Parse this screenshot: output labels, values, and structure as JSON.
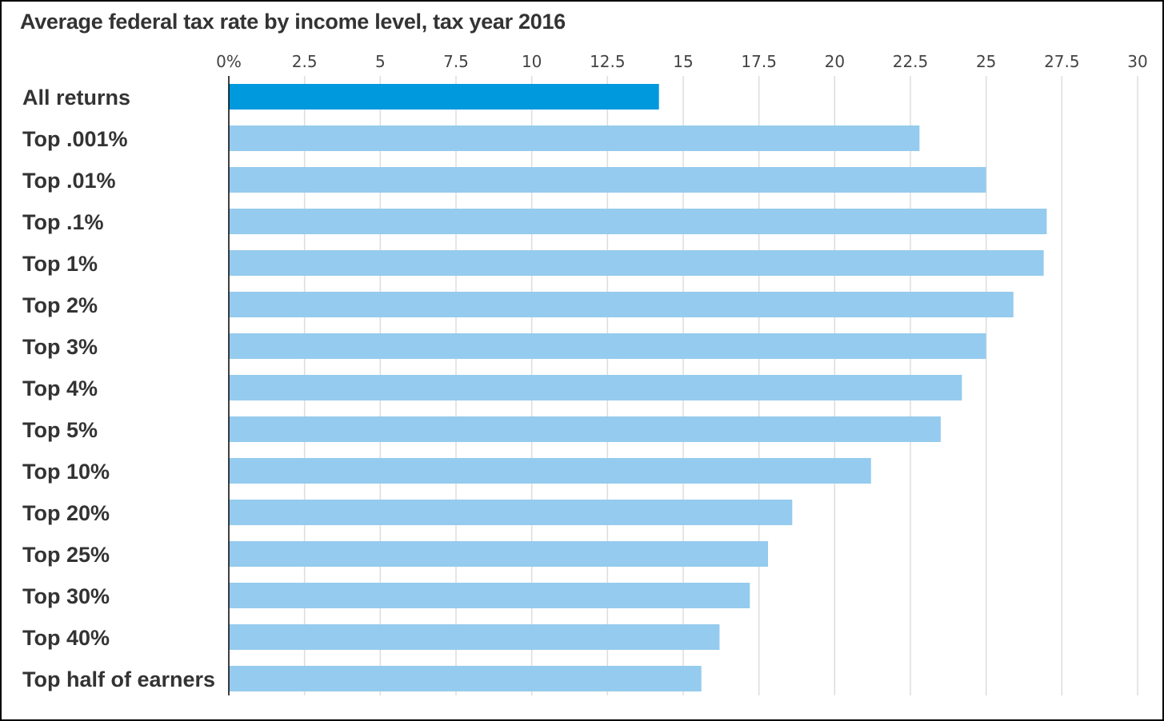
{
  "chart_data": {
    "type": "bar",
    "orientation": "horizontal",
    "title": "Average federal tax rate by income level, tax year 2016",
    "xlabel": "",
    "ylabel": "",
    "xlim": [
      0,
      30
    ],
    "xticks": [
      0,
      2.5,
      5,
      7.5,
      10,
      12.5,
      15,
      17.5,
      20,
      22.5,
      25,
      27.5,
      30
    ],
    "xtick_labels": [
      "0%",
      "2.5",
      "5",
      "7.5",
      "10",
      "12.5",
      "15",
      "17.5",
      "20",
      "22.5",
      "25",
      "27.5",
      "30"
    ],
    "grid": true,
    "categories": [
      "All returns",
      "Top .001%",
      "Top .01%",
      "Top .1%",
      "Top 1%",
      "Top 2%",
      "Top 3%",
      "Top 4%",
      "Top 5%",
      "Top 10%",
      "Top 20%",
      "Top 25%",
      "Top 30%",
      "Top 40%",
      "Top half of earners"
    ],
    "values": [
      14.2,
      22.8,
      25.0,
      27.0,
      26.9,
      25.9,
      25.0,
      24.2,
      23.5,
      21.2,
      18.6,
      17.8,
      17.2,
      16.2,
      15.6
    ],
    "colors": {
      "highlight": "#0099dd",
      "default": "#95cbee",
      "grid": "#dddddd",
      "axis": "#000000"
    }
  }
}
